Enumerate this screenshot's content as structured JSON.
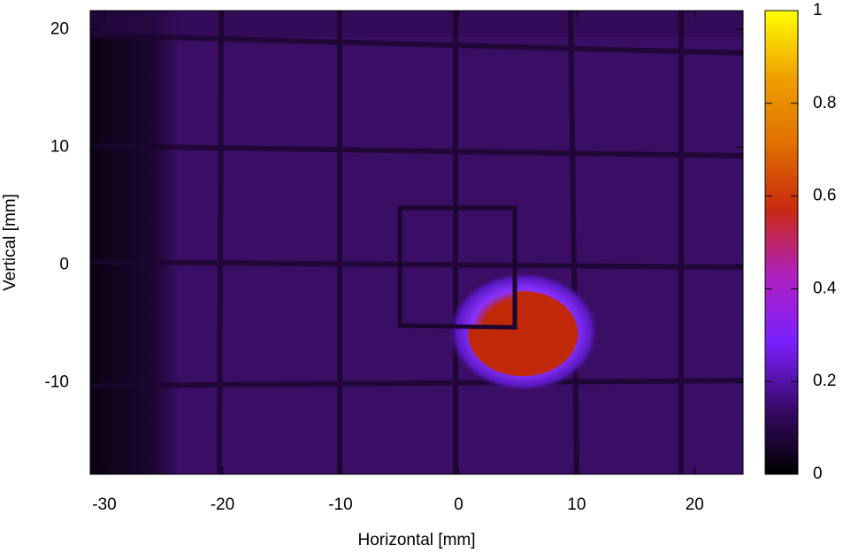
{
  "chart_data": {
    "type": "heatmap",
    "xlabel": "Horizontal [mm]",
    "ylabel": "Vertical [mm]",
    "xlim": [
      -31.2,
      24.1
    ],
    "ylim": [
      -17.8,
      21.6
    ],
    "xticks": [
      -30,
      -20,
      -10,
      0,
      10,
      20
    ],
    "yticks": [
      -10,
      0,
      10,
      20
    ],
    "colorbar": {
      "lim": [
        0,
        1
      ],
      "ticks": [
        0,
        0.2,
        0.4,
        0.6,
        0.8,
        1
      ],
      "colors": [
        "#000000",
        "#3a0a6a",
        "#7a20ff",
        "#b020c0",
        "#c82a10",
        "#e07000",
        "#f0a000",
        "#ffff00"
      ]
    }
  }
}
